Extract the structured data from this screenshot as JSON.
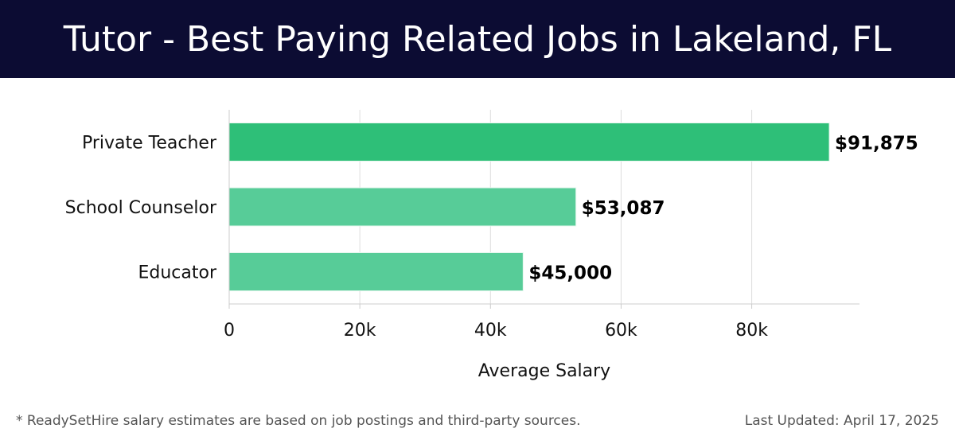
{
  "header": {
    "title": "Tutor - Best Paying Related Jobs in Lakeland, FL"
  },
  "chart_data": {
    "type": "bar",
    "orientation": "horizontal",
    "categories": [
      "Private Teacher",
      "School Counselor",
      "Educator"
    ],
    "values": [
      91875,
      53087,
      45000
    ],
    "value_labels": [
      "$91,875",
      "$53,087",
      "$45,000"
    ],
    "xlabel": "Average Salary",
    "ylabel": "",
    "xlim": [
      0,
      96500
    ],
    "x_ticks": [
      0,
      20000,
      40000,
      60000,
      80000
    ],
    "x_tick_labels": [
      "0",
      "20k",
      "40k",
      "60k",
      "80k"
    ],
    "grid": true,
    "colors": {
      "highlight": "#2ebf78",
      "bar": "#57cc98"
    }
  },
  "footer": {
    "note": "* ReadySetHire salary estimates are based on job postings and third-party sources.",
    "updated": "Last Updated: April 17, 2025"
  }
}
